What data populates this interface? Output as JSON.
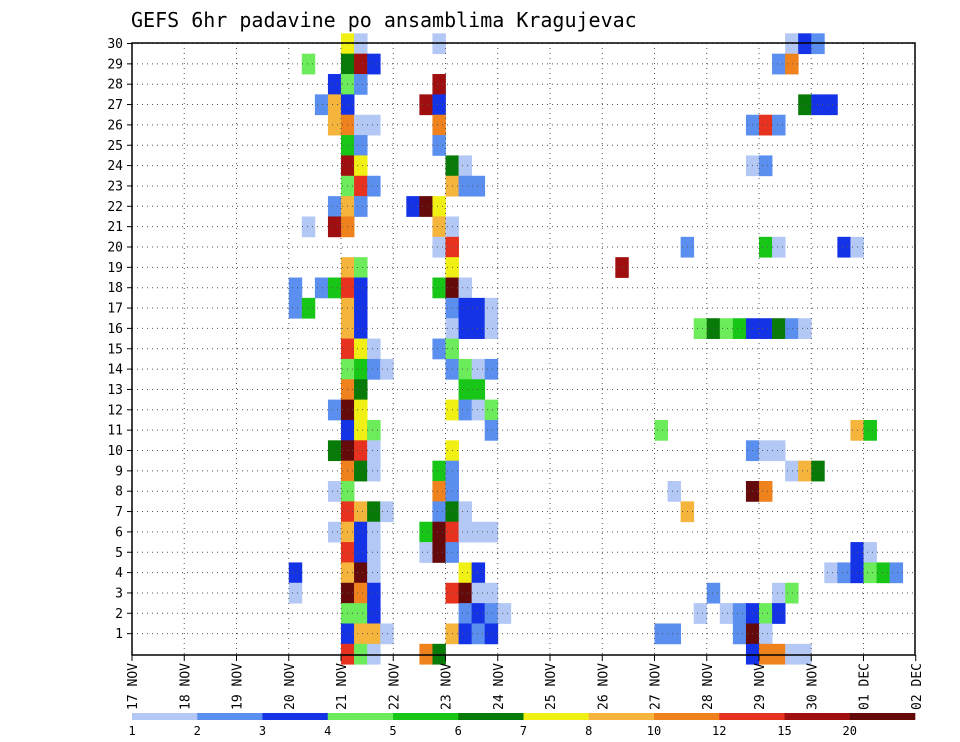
{
  "chart_data": {
    "type": "heatmap",
    "title": "GEFS 6hr padavine po ansamblima Kragujevac",
    "xlabel": "",
    "ylabel": "",
    "x_ticks": [
      "17 NOV",
      "18 NOV",
      "19 NOV",
      "20 NOV",
      "21 NOV",
      "22 NOV",
      "23 NOV",
      "24 NOV",
      "25 NOV",
      "26 NOV",
      "27 NOV",
      "28 NOV",
      "29 NOV",
      "30 NOV",
      "01 DEC",
      "02 DEC"
    ],
    "y_ticks": [
      "1",
      "2",
      "3",
      "4",
      "5",
      "6",
      "7",
      "8",
      "9",
      "10",
      "11",
      "12",
      "13",
      "14",
      "15",
      "16",
      "17",
      "18",
      "19",
      "20",
      "21",
      "22",
      "23",
      "24",
      "25",
      "26",
      "27",
      "28",
      "29",
      "30"
    ],
    "x_unit": "days since 17 NOV 00Z",
    "step_hours": 6,
    "grid": true,
    "legend": {
      "placement": "bottom",
      "labels": [
        "1",
        "2",
        "3",
        "4",
        "5",
        "6",
        "7",
        "8",
        "10",
        "12",
        "15",
        "20"
      ],
      "colors": [
        "#b4c8f5",
        "#5a8ff0",
        "#1433e6",
        "#6cec5a",
        "#18c618",
        "#087a08",
        "#f0f014",
        "#f5b43c",
        "#f0821e",
        "#e6321e",
        "#a00f0f",
        "#640a0a"
      ]
    },
    "cells": [
      [
        21,
        30,
        7
      ],
      [
        21.25,
        30,
        1
      ],
      [
        22.75,
        30,
        1
      ],
      [
        29.5,
        30,
        1
      ],
      [
        29.75,
        30,
        3
      ],
      [
        30,
        30,
        2
      ],
      [
        20.25,
        29,
        4
      ],
      [
        21,
        29,
        6
      ],
      [
        21.25,
        29,
        11
      ],
      [
        21.5,
        29,
        3
      ],
      [
        29.25,
        29,
        2
      ],
      [
        29.5,
        29,
        9
      ],
      [
        20.75,
        28,
        3
      ],
      [
        21,
        28,
        4
      ],
      [
        21.25,
        28,
        2
      ],
      [
        22.75,
        28,
        11
      ],
      [
        20.5,
        27,
        2
      ],
      [
        20.75,
        27,
        8
      ],
      [
        21,
        27,
        3
      ],
      [
        22.5,
        27,
        11
      ],
      [
        22.75,
        27,
        3
      ],
      [
        29.75,
        27,
        6
      ],
      [
        30,
        27,
        3
      ],
      [
        30.25,
        27,
        3
      ],
      [
        20.75,
        26,
        8
      ],
      [
        21,
        26,
        9
      ],
      [
        21.25,
        26,
        1
      ],
      [
        21.5,
        26,
        1
      ],
      [
        22.75,
        26,
        9
      ],
      [
        28.75,
        26,
        2
      ],
      [
        29,
        26,
        10
      ],
      [
        29.25,
        26,
        2
      ],
      [
        21,
        25,
        5
      ],
      [
        21.25,
        25,
        2
      ],
      [
        22.75,
        25,
        2
      ],
      [
        21,
        24,
        11
      ],
      [
        21.25,
        24,
        7
      ],
      [
        23,
        24,
        6
      ],
      [
        23.25,
        24,
        1
      ],
      [
        28.75,
        24,
        1
      ],
      [
        29,
        24,
        2
      ],
      [
        21,
        23,
        4
      ],
      [
        21.25,
        23,
        10
      ],
      [
        21.5,
        23,
        2
      ],
      [
        23,
        23,
        8
      ],
      [
        23.25,
        23,
        2
      ],
      [
        23.5,
        23,
        2
      ],
      [
        20.75,
        22,
        2
      ],
      [
        21,
        22,
        8
      ],
      [
        21.25,
        22,
        2
      ],
      [
        22.25,
        22,
        3
      ],
      [
        22.5,
        22,
        12
      ],
      [
        22.75,
        22,
        7
      ],
      [
        20.25,
        21,
        1
      ],
      [
        20.75,
        21,
        11
      ],
      [
        21,
        21,
        9
      ],
      [
        22.75,
        21,
        8
      ],
      [
        23,
        21,
        1
      ],
      [
        22.75,
        20,
        1
      ],
      [
        23,
        20,
        10
      ],
      [
        27.5,
        20,
        2
      ],
      [
        29,
        20,
        5
      ],
      [
        29.25,
        20,
        1
      ],
      [
        30.5,
        20,
        3
      ],
      [
        30.75,
        20,
        1
      ],
      [
        21,
        19,
        8
      ],
      [
        21.25,
        19,
        4
      ],
      [
        23,
        19,
        7
      ],
      [
        26.25,
        19,
        11
      ],
      [
        20,
        18,
        2
      ],
      [
        20.5,
        18,
        2
      ],
      [
        20.75,
        18,
        5
      ],
      [
        21,
        18,
        10
      ],
      [
        21.25,
        18,
        3
      ],
      [
        22.75,
        18,
        5
      ],
      [
        23,
        18,
        12
      ],
      [
        23.25,
        18,
        1
      ],
      [
        20,
        17,
        2
      ],
      [
        20.25,
        17,
        5
      ],
      [
        21,
        17,
        8
      ],
      [
        21.25,
        17,
        3
      ],
      [
        23,
        17,
        2
      ],
      [
        23.25,
        17,
        3
      ],
      [
        23.5,
        17,
        3
      ],
      [
        23.75,
        17,
        1
      ],
      [
        21,
        16,
        8
      ],
      [
        21.25,
        16,
        3
      ],
      [
        23,
        16,
        1
      ],
      [
        23.25,
        16,
        3
      ],
      [
        23.5,
        16,
        3
      ],
      [
        23.75,
        16,
        1
      ],
      [
        27.75,
        16,
        4
      ],
      [
        28,
        16,
        6
      ],
      [
        28.25,
        16,
        4
      ],
      [
        28.5,
        16,
        5
      ],
      [
        28.75,
        16,
        3
      ],
      [
        29,
        16,
        3
      ],
      [
        29.25,
        16,
        6
      ],
      [
        29.5,
        16,
        2
      ],
      [
        29.75,
        16,
        1
      ],
      [
        21,
        15,
        10
      ],
      [
        21.25,
        15,
        7
      ],
      [
        21.5,
        15,
        1
      ],
      [
        22.75,
        15,
        2
      ],
      [
        23,
        15,
        4
      ],
      [
        21,
        14,
        4
      ],
      [
        21.25,
        14,
        5
      ],
      [
        21.5,
        14,
        2
      ],
      [
        21.75,
        14,
        1
      ],
      [
        23,
        14,
        2
      ],
      [
        23.25,
        14,
        4
      ],
      [
        23.5,
        14,
        1
      ],
      [
        23.75,
        14,
        2
      ],
      [
        21,
        13,
        9
      ],
      [
        21.25,
        13,
        6
      ],
      [
        23.25,
        13,
        5
      ],
      [
        23.5,
        13,
        5
      ],
      [
        20.75,
        12,
        2
      ],
      [
        21,
        12,
        12
      ],
      [
        21.25,
        12,
        7
      ],
      [
        23,
        12,
        7
      ],
      [
        23.25,
        12,
        2
      ],
      [
        23.5,
        12,
        1
      ],
      [
        23.75,
        12,
        4
      ],
      [
        21,
        11,
        3
      ],
      [
        21.25,
        11,
        7
      ],
      [
        21.5,
        11,
        4
      ],
      [
        23.75,
        11,
        2
      ],
      [
        27,
        11,
        4
      ],
      [
        30.75,
        11,
        8
      ],
      [
        31,
        11,
        5
      ],
      [
        20.75,
        10,
        6
      ],
      [
        21,
        10,
        12
      ],
      [
        21.25,
        10,
        10
      ],
      [
        21.5,
        10,
        1
      ],
      [
        23,
        10,
        7
      ],
      [
        28.75,
        10,
        2
      ],
      [
        29,
        10,
        1
      ],
      [
        29.25,
        10,
        1
      ],
      [
        21,
        9,
        9
      ],
      [
        21.25,
        9,
        6
      ],
      [
        21.5,
        9,
        1
      ],
      [
        22.75,
        9,
        5
      ],
      [
        23,
        9,
        2
      ],
      [
        29.5,
        9,
        1
      ],
      [
        29.75,
        9,
        8
      ],
      [
        30,
        9,
        6
      ],
      [
        20.75,
        8,
        1
      ],
      [
        21,
        8,
        4
      ],
      [
        22.75,
        8,
        9
      ],
      [
        23,
        8,
        2
      ],
      [
        27.25,
        8,
        1
      ],
      [
        28.75,
        8,
        12
      ],
      [
        29,
        8,
        9
      ],
      [
        21,
        7,
        10
      ],
      [
        21.25,
        7,
        8
      ],
      [
        21.5,
        7,
        6
      ],
      [
        21.75,
        7,
        1
      ],
      [
        22.75,
        7,
        2
      ],
      [
        23,
        7,
        6
      ],
      [
        23.25,
        7,
        1
      ],
      [
        27.5,
        7,
        8
      ],
      [
        20.75,
        6,
        1
      ],
      [
        21,
        6,
        8
      ],
      [
        21.25,
        6,
        3
      ],
      [
        21.5,
        6,
        1
      ],
      [
        22.5,
        6,
        5
      ],
      [
        22.75,
        6,
        12
      ],
      [
        23,
        6,
        10
      ],
      [
        23.25,
        6,
        1
      ],
      [
        23.5,
        6,
        1
      ],
      [
        23.75,
        6,
        1
      ],
      [
        21,
        5,
        10
      ],
      [
        21.25,
        5,
        3
      ],
      [
        21.5,
        5,
        1
      ],
      [
        22.5,
        5,
        1
      ],
      [
        22.75,
        5,
        12
      ],
      [
        23,
        5,
        2
      ],
      [
        30.75,
        5,
        3
      ],
      [
        31,
        5,
        1
      ],
      [
        20,
        4,
        3
      ],
      [
        21,
        4,
        8
      ],
      [
        21.25,
        4,
        12
      ],
      [
        21.5,
        4,
        1
      ],
      [
        23.25,
        4,
        7
      ],
      [
        23.5,
        4,
        3
      ],
      [
        30.25,
        4,
        1
      ],
      [
        30.5,
        4,
        2
      ],
      [
        30.75,
        4,
        3
      ],
      [
        31,
        4,
        4
      ],
      [
        31.25,
        4,
        5
      ],
      [
        31.5,
        4,
        2
      ],
      [
        20,
        3,
        1
      ],
      [
        21,
        3,
        12
      ],
      [
        21.25,
        3,
        9
      ],
      [
        21.5,
        3,
        3
      ],
      [
        23,
        3,
        10
      ],
      [
        23.25,
        3,
        12
      ],
      [
        23.5,
        3,
        1
      ],
      [
        23.75,
        3,
        1
      ],
      [
        28,
        3,
        2
      ],
      [
        29.25,
        3,
        1
      ],
      [
        29.5,
        3,
        4
      ],
      [
        21,
        2,
        4
      ],
      [
        21.25,
        2,
        4
      ],
      [
        21.5,
        2,
        3
      ],
      [
        23.25,
        2,
        2
      ],
      [
        23.5,
        2,
        3
      ],
      [
        23.75,
        2,
        2
      ],
      [
        24,
        2,
        1
      ],
      [
        27.75,
        2,
        1
      ],
      [
        28.25,
        2,
        1
      ],
      [
        28.5,
        2,
        2
      ],
      [
        28.75,
        2,
        3
      ],
      [
        29,
        2,
        4
      ],
      [
        29.25,
        2,
        3
      ],
      [
        21,
        1,
        3
      ],
      [
        21.25,
        1,
        8
      ],
      [
        21.5,
        1,
        8
      ],
      [
        21.75,
        1,
        1
      ],
      [
        23,
        1,
        8
      ],
      [
        23.25,
        1,
        3
      ],
      [
        23.5,
        1,
        2
      ],
      [
        23.75,
        1,
        3
      ],
      [
        27,
        1,
        2
      ],
      [
        27.25,
        1,
        2
      ],
      [
        28.5,
        1,
        2
      ],
      [
        28.75,
        1,
        12
      ],
      [
        29,
        1,
        1
      ],
      [
        21,
        0,
        10
      ],
      [
        21.25,
        0,
        4
      ],
      [
        21.5,
        0,
        1
      ],
      [
        22.5,
        0,
        9
      ],
      [
        22.75,
        0,
        6
      ],
      [
        28.75,
        0,
        3
      ],
      [
        29,
        0,
        9
      ],
      [
        29.25,
        0,
        9
      ],
      [
        29.5,
        0,
        1
      ],
      [
        29.75,
        0,
        1
      ]
    ]
  }
}
